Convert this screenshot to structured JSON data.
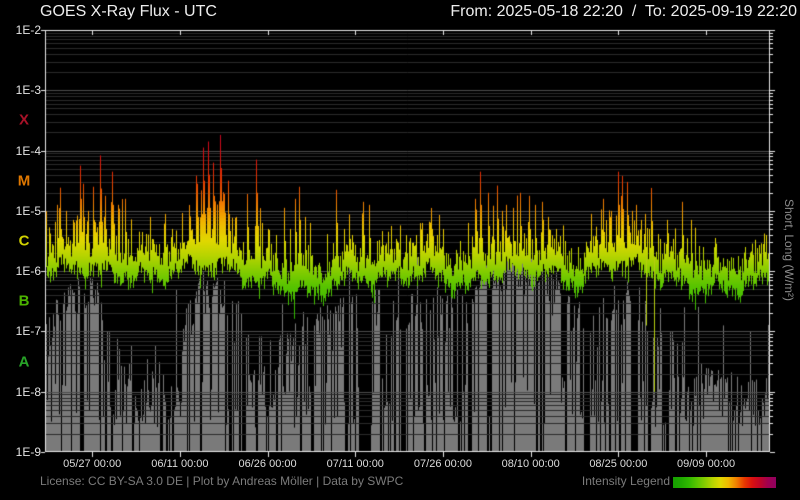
{
  "header": {
    "title": "GOES X-Ray Flux - UTC",
    "range_label": "From: 2025-05-18 22:20  /  To: 2025-09-19 22:20"
  },
  "right_axis_label": "Short, Long (W/m²)",
  "footer": {
    "license": "License: CC BY-SA 3.0 DE | Plot by Andreas Möller | Data by SWPC",
    "legend_label": "Intensity Legend"
  },
  "y_axis": {
    "tick_labels": [
      "1E-2",
      "1E-3",
      "1E-4",
      "1E-5",
      "1E-6",
      "1E-7",
      "1E-8",
      "1E-9"
    ],
    "class_labels": [
      {
        "label": "X",
        "color": "#a81228",
        "band_log10": [
          -4,
          -3
        ]
      },
      {
        "label": "M",
        "color": "#e07800",
        "band_log10": [
          -5,
          -4
        ]
      },
      {
        "label": "C",
        "color": "#d2d200",
        "band_log10": [
          -6,
          -5
        ]
      },
      {
        "label": "B",
        "color": "#4cb400",
        "band_log10": [
          -7,
          -6
        ]
      },
      {
        "label": "A",
        "color": "#28a428",
        "band_log10": [
          -8,
          -7
        ]
      }
    ]
  },
  "x_axis": {
    "ticks": [
      {
        "label": "05/27 00:00",
        "day": 8.0694
      },
      {
        "label": "06/11 00:00",
        "day": 23.0694
      },
      {
        "label": "06/26 00:00",
        "day": 38.0694
      },
      {
        "label": "07/11 00:00",
        "day": 53.0694
      },
      {
        "label": "07/26 00:00",
        "day": 68.0694
      },
      {
        "label": "08/10 00:00",
        "day": 83.0694
      },
      {
        "label": "08/25 00:00",
        "day": 98.0694
      },
      {
        "label": "09/09 00:00",
        "day": 113.0694
      }
    ]
  },
  "chart_data": {
    "type": "line",
    "title": "GOES X-Ray Flux - UTC",
    "x_range": [
      "2025-05-18 22:20",
      "2025-09-19 22:20"
    ],
    "x_days_total": 124,
    "ylim_log10": [
      -9,
      -2
    ],
    "seed": 1337,
    "grid": {
      "minor_color": "#2b2b2b",
      "major_color": "#4d4d4d",
      "spine_color": "#e8e8e8"
    },
    "intensity_gradient": [
      [
        -9.0,
        "#16a000"
      ],
      [
        -7.6,
        "#1ea800"
      ],
      [
        -6.7,
        "#30b800"
      ],
      [
        -6.25,
        "#58c400"
      ],
      [
        -6.0,
        "#84cc00"
      ],
      [
        -5.75,
        "#b6d400"
      ],
      [
        -5.5,
        "#e0d800"
      ],
      [
        -5.2,
        "#f0b800"
      ],
      [
        -4.9,
        "#f08000"
      ],
      [
        -4.5,
        "#e83a00"
      ],
      [
        -4.1,
        "#da1010"
      ],
      [
        -3.65,
        "#c00428"
      ],
      [
        -3.0,
        "#a00050"
      ],
      [
        -2.0,
        "#900060"
      ]
    ],
    "dropout_color": "#b4cc10",
    "series": [
      {
        "name": "long",
        "style": "intensity-gradient",
        "baseline_log10": [
          [
            0,
            -5.92
          ],
          [
            3,
            -5.88
          ],
          [
            6,
            -5.85
          ],
          [
            10,
            -5.92
          ],
          [
            14,
            -5.98
          ],
          [
            18,
            -6.02
          ],
          [
            22,
            -5.92
          ],
          [
            25,
            -5.82
          ],
          [
            28,
            -5.78
          ],
          [
            31,
            -5.84
          ],
          [
            34,
            -5.98
          ],
          [
            38,
            -6.1
          ],
          [
            41,
            -6.18
          ],
          [
            44,
            -6.22
          ],
          [
            46.5,
            -6.33
          ],
          [
            48,
            -6.18
          ],
          [
            50,
            -6.05
          ],
          [
            53,
            -6.02
          ],
          [
            56,
            -6.0
          ],
          [
            59,
            -6.05
          ],
          [
            61,
            -6.0
          ],
          [
            64,
            -5.92
          ],
          [
            67,
            -5.95
          ],
          [
            70,
            -6.1
          ],
          [
            72.5,
            -6.18
          ],
          [
            74,
            -6.05
          ],
          [
            76,
            -5.95
          ],
          [
            79,
            -5.92
          ],
          [
            82,
            -5.9
          ],
          [
            85,
            -5.92
          ],
          [
            88,
            -5.95
          ],
          [
            90.5,
            -6.15
          ],
          [
            92.5,
            -6.05
          ],
          [
            94,
            -5.9
          ],
          [
            96,
            -5.78
          ],
          [
            98,
            -5.76
          ],
          [
            100,
            -5.8
          ],
          [
            102,
            -5.88
          ],
          [
            104,
            -5.92
          ],
          [
            106,
            -6.0
          ],
          [
            108,
            -6.08
          ],
          [
            110,
            -6.15
          ],
          [
            112,
            -6.18
          ],
          [
            115,
            -6.2
          ],
          [
            118,
            -6.18
          ],
          [
            121,
            -6.12
          ],
          [
            124,
            -6.08
          ]
        ],
        "spike_intensity_dex": [
          [
            0,
            1.0
          ],
          [
            3,
            1.2
          ],
          [
            6,
            1.4
          ],
          [
            9,
            1.3
          ],
          [
            12,
            1.0
          ],
          [
            15,
            0.8
          ],
          [
            18,
            0.7
          ],
          [
            21,
            0.8
          ],
          [
            24,
            1.1
          ],
          [
            27,
            1.3
          ],
          [
            30,
            1.4
          ],
          [
            33,
            0.9
          ],
          [
            36,
            1.0
          ],
          [
            39,
            0.8
          ],
          [
            42,
            0.7
          ],
          [
            45,
            0.55
          ],
          [
            48,
            0.6
          ],
          [
            51,
            0.8
          ],
          [
            54,
            0.8
          ],
          [
            57,
            0.7
          ],
          [
            60,
            0.6
          ],
          [
            63,
            0.65
          ],
          [
            66,
            0.6
          ],
          [
            69,
            0.6
          ],
          [
            72,
            0.7
          ],
          [
            75,
            0.9
          ],
          [
            78,
            0.9
          ],
          [
            81,
            0.9
          ],
          [
            84,
            0.85
          ],
          [
            87,
            0.7
          ],
          [
            90,
            0.55
          ],
          [
            93,
            0.6
          ],
          [
            96,
            0.8
          ],
          [
            99,
            0.9
          ],
          [
            102,
            0.8
          ],
          [
            105,
            0.7
          ],
          [
            108,
            0.6
          ],
          [
            111,
            0.5
          ],
          [
            114,
            0.4
          ],
          [
            117,
            0.45
          ],
          [
            120,
            0.5
          ],
          [
            124,
            0.55
          ]
        ],
        "flares": [
          [
            0.86,
            -5.4
          ],
          [
            2.05,
            -4.9
          ],
          [
            3.59,
            -5.0
          ],
          [
            4.79,
            -5.15
          ],
          [
            5.99,
            -4.25
          ],
          [
            6.5,
            -4.55
          ],
          [
            7.35,
            -5.0
          ],
          [
            8.21,
            -4.6
          ],
          [
            9.41,
            -4.08
          ],
          [
            10.26,
            -4.75
          ],
          [
            11.46,
            -4.35
          ],
          [
            12.48,
            -4.9
          ],
          [
            13.68,
            -4.8
          ],
          [
            14.71,
            -5.25
          ],
          [
            16.59,
            -5.35
          ],
          [
            17.96,
            -5.1
          ],
          [
            20.52,
            -5.05
          ],
          [
            21.72,
            -5.3
          ],
          [
            26.0,
            -4.55
          ],
          [
            27.02,
            -3.95
          ],
          [
            27.88,
            -3.85
          ],
          [
            28.73,
            -4.2
          ],
          [
            29.93,
            -3.74
          ],
          [
            31.3,
            -4.5
          ],
          [
            32.67,
            -5.1
          ],
          [
            34.55,
            -4.72
          ],
          [
            36.09,
            -4.15
          ],
          [
            37.11,
            -5.2
          ],
          [
            38.14,
            -5.3
          ],
          [
            39.5,
            -5.4
          ],
          [
            40.87,
            -4.95
          ],
          [
            41.9,
            -5.3
          ],
          [
            42.76,
            -4.8
          ],
          [
            43.44,
            -4.6
          ],
          [
            44.47,
            -5.1
          ],
          [
            45.32,
            -5.2
          ],
          [
            49.77,
            -4.65
          ],
          [
            51.14,
            -5.3
          ],
          [
            52.5,
            -5.4
          ],
          [
            54.39,
            -4.85
          ],
          [
            55.41,
            -4.9
          ],
          [
            56.78,
            -5.5
          ],
          [
            59.18,
            -5.25
          ],
          [
            60.7,
            -5.5
          ],
          [
            62.4,
            -5.45
          ],
          [
            64.48,
            -5.2
          ],
          [
            65.68,
            -5.18
          ],
          [
            67.0,
            -5.4
          ],
          [
            68.07,
            -5.3
          ],
          [
            70.98,
            -5.5
          ],
          [
            72.35,
            -5.2
          ],
          [
            73.54,
            -4.8
          ],
          [
            74.4,
            -4.35
          ],
          [
            75.77,
            -4.7
          ],
          [
            77.31,
            -4.58
          ],
          [
            78.2,
            -5.0
          ],
          [
            78.84,
            -4.9
          ],
          [
            80.04,
            -4.95
          ],
          [
            81.23,
            -4.7
          ],
          [
            82.77,
            -4.75
          ],
          [
            83.8,
            -4.9
          ],
          [
            85.0,
            -4.85
          ],
          [
            86.02,
            -5.1
          ],
          [
            87.4,
            -5.3
          ],
          [
            88.9,
            -5.5
          ],
          [
            91.2,
            -5.6
          ],
          [
            93.2,
            -5.5
          ],
          [
            95.43,
            -4.8
          ],
          [
            96.8,
            -5.0
          ],
          [
            98.0,
            -4.35
          ],
          [
            98.68,
            -4.42
          ],
          [
            99.54,
            -4.52
          ],
          [
            100.4,
            -5.0
          ],
          [
            101.08,
            -4.9
          ],
          [
            101.9,
            -5.15
          ],
          [
            102.62,
            -5.05
          ],
          [
            103.65,
            -4.62
          ],
          [
            106.38,
            -5.15
          ],
          [
            107.75,
            -5.45
          ],
          [
            108.95,
            -4.85
          ],
          [
            110.49,
            -5.15
          ],
          [
            111.17,
            -5.28
          ],
          [
            112.5,
            -5.6
          ],
          [
            115.1,
            -5.85
          ],
          [
            116.6,
            -5.8
          ],
          [
            118.5,
            -5.75
          ],
          [
            119.72,
            -5.6
          ],
          [
            121.43,
            -5.48
          ],
          [
            122.8,
            -5.55
          ]
        ],
        "dropouts": [
          [
            102.8,
            -6.9
          ],
          [
            104.15,
            -8.0
          ]
        ]
      },
      {
        "name": "short",
        "style": "gray-fill",
        "color": "#7a7a7a",
        "envelope_log10": [
          [
            0,
            -6.8
          ],
          [
            4,
            -6.15
          ],
          [
            8.5,
            -6.05
          ],
          [
            11,
            -6.9
          ],
          [
            14,
            -7.2
          ],
          [
            17,
            -7.3
          ],
          [
            20,
            -7.3
          ],
          [
            22.5,
            -7.0
          ],
          [
            24.5,
            -6.3
          ],
          [
            27,
            -6.05
          ],
          [
            30,
            -6.05
          ],
          [
            32.5,
            -6.5
          ],
          [
            35,
            -6.9
          ],
          [
            38,
            -7.0
          ],
          [
            41,
            -6.9
          ],
          [
            44,
            -6.7
          ],
          [
            47,
            -6.6
          ],
          [
            50,
            -6.5
          ],
          [
            53,
            -6.4
          ],
          [
            56,
            -6.3
          ],
          [
            59,
            -6.5
          ],
          [
            62,
            -6.4
          ],
          [
            65,
            -6.3
          ],
          [
            68,
            -6.4
          ],
          [
            71,
            -6.2
          ],
          [
            73.5,
            -6.0
          ],
          [
            76,
            -5.85
          ],
          [
            80,
            -5.78
          ],
          [
            83.5,
            -5.9
          ],
          [
            86,
            -5.95
          ],
          [
            88.5,
            -6.2
          ],
          [
            91,
            -6.6
          ],
          [
            93.5,
            -6.8
          ],
          [
            96,
            -6.4
          ],
          [
            99,
            -6.25
          ],
          [
            102,
            -6.3
          ],
          [
            104.5,
            -6.5
          ],
          [
            106.5,
            -6.9
          ],
          [
            109,
            -7.1
          ],
          [
            111.5,
            -7.4
          ],
          [
            114,
            -7.6
          ],
          [
            117,
            -7.7
          ],
          [
            120,
            -7.7
          ],
          [
            124,
            -7.6
          ]
        ],
        "tall_prob": [
          [
            0,
            0.5
          ],
          [
            4,
            0.8
          ],
          [
            8.5,
            0.85
          ],
          [
            11,
            0.42
          ],
          [
            14,
            0.33
          ],
          [
            17,
            0.3
          ],
          [
            20,
            0.3
          ],
          [
            22.5,
            0.38
          ],
          [
            24.5,
            0.7
          ],
          [
            27,
            0.87
          ],
          [
            30,
            0.87
          ],
          [
            32.5,
            0.6
          ],
          [
            35,
            0.5
          ],
          [
            38,
            0.45
          ],
          [
            41,
            0.5
          ],
          [
            44,
            0.55
          ],
          [
            47,
            0.55
          ],
          [
            50,
            0.6
          ],
          [
            53,
            0.6
          ],
          [
            56,
            0.6
          ],
          [
            59,
            0.55
          ],
          [
            62,
            0.6
          ],
          [
            65,
            0.65
          ],
          [
            68,
            0.6
          ],
          [
            71,
            0.7
          ],
          [
            73.5,
            0.85
          ],
          [
            76,
            0.9
          ],
          [
            80,
            0.92
          ],
          [
            83.5,
            0.85
          ],
          [
            86,
            0.8
          ],
          [
            88.5,
            0.7
          ],
          [
            91,
            0.5
          ],
          [
            93.5,
            0.45
          ],
          [
            96,
            0.75
          ],
          [
            99,
            0.8
          ],
          [
            102,
            0.75
          ],
          [
            104.5,
            0.6
          ],
          [
            106.5,
            0.45
          ],
          [
            109,
            0.42
          ],
          [
            111.5,
            0.45
          ],
          [
            114,
            0.45
          ],
          [
            117,
            0.45
          ],
          [
            120,
            0.45
          ],
          [
            124,
            0.45
          ]
        ],
        "spikes": [
          [
            22.4,
            -6.3
          ],
          [
            33.0,
            -6.5
          ],
          [
            40.5,
            -6.55
          ],
          [
            47.0,
            -6.6
          ],
          [
            56.5,
            -6.3
          ],
          [
            64.8,
            -6.3
          ],
          [
            68.5,
            -6.5
          ],
          [
            105.5,
            -6.05
          ],
          [
            109.3,
            -6.6
          ],
          [
            116.0,
            -6.9
          ],
          [
            120.5,
            -7.0
          ]
        ]
      }
    ]
  }
}
